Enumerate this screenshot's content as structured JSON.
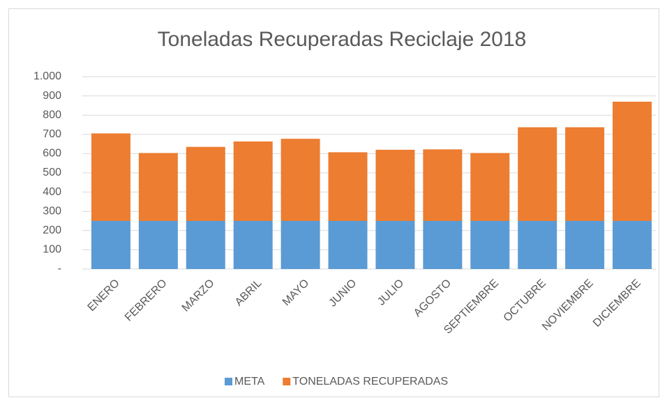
{
  "chart_data": {
    "type": "stacked_bar",
    "title": "Toneladas Recuperadas Reciclaje 2018",
    "categories": [
      "ENERO",
      "FEBRERO",
      "MARZO",
      "ABRIL",
      "MAYO",
      "JUNIO",
      "JULIO",
      "AGOSTO",
      "SEPTIEMBRE",
      "OCTUBRE",
      "NOVIEMBRE",
      "DICIEMBRE"
    ],
    "series": [
      {
        "name": "META",
        "color": "#5b9bd5",
        "values": [
          250,
          250,
          250,
          250,
          250,
          250,
          250,
          250,
          250,
          250,
          250,
          250
        ]
      },
      {
        "name": "TONELADAS RECUPERADAS",
        "color": "#ed7d31",
        "values": [
          455,
          353,
          385,
          413,
          427,
          357,
          370,
          372,
          353,
          487,
          487,
          620
        ]
      }
    ],
    "ylim": [
      0,
      1000
    ],
    "yticks": [
      {
        "value": 0,
        "label": "-"
      },
      100,
      200,
      300,
      400,
      500,
      600,
      700,
      800,
      900,
      {
        "value": 1000,
        "label": "1.000"
      }
    ],
    "grid": true,
    "legend": "bottom"
  }
}
